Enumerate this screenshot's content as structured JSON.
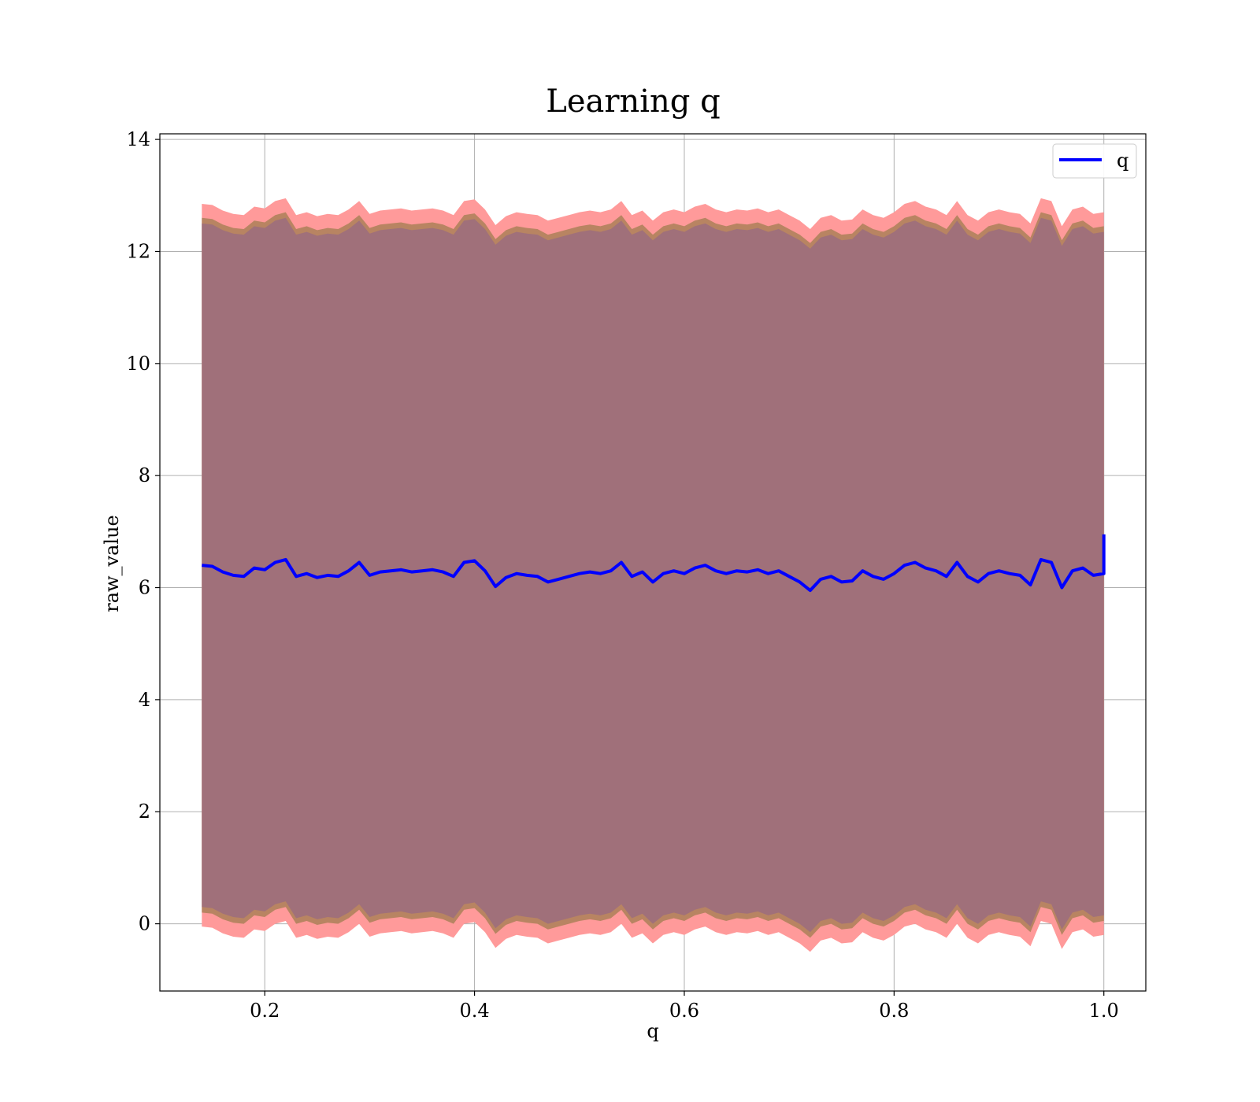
{
  "chart_data": {
    "type": "area",
    "title": "Learning q",
    "xlabel": "q",
    "ylabel": "raw_value",
    "xlim": [
      0.1,
      1.04
    ],
    "ylim": [
      -1.2,
      14.1
    ],
    "xticks": [
      0.2,
      0.4,
      0.6,
      0.8,
      1.0
    ],
    "xtick_labels": [
      "0.2",
      "0.4",
      "0.6",
      "0.8",
      "1.0"
    ],
    "yticks": [
      0,
      2,
      4,
      6,
      8,
      10,
      12,
      14
    ],
    "ytick_labels": [
      "0",
      "2",
      "4",
      "6",
      "8",
      "10",
      "12",
      "14"
    ],
    "grid": true,
    "legend": {
      "position": "top-right",
      "entries": [
        {
          "label": "q",
          "color": "#0000ff"
        }
      ]
    },
    "colors": {
      "line": "#0000ff",
      "band_outer": "#ff9a9a",
      "band_mid": "#b88462",
      "band_inner": "#a0707a",
      "axes": "#000000",
      "grid": "#b0b0b0"
    },
    "series": [
      {
        "name": "q",
        "x": [
          0.14,
          0.15,
          0.16,
          0.17,
          0.18,
          0.19,
          0.2,
          0.21,
          0.22,
          0.23,
          0.24,
          0.25,
          0.26,
          0.27,
          0.28,
          0.29,
          0.3,
          0.31,
          0.32,
          0.33,
          0.34,
          0.35,
          0.36,
          0.37,
          0.38,
          0.39,
          0.4,
          0.41,
          0.42,
          0.43,
          0.44,
          0.45,
          0.46,
          0.47,
          0.48,
          0.49,
          0.5,
          0.51,
          0.52,
          0.53,
          0.54,
          0.55,
          0.56,
          0.57,
          0.58,
          0.59,
          0.6,
          0.61,
          0.62,
          0.63,
          0.64,
          0.65,
          0.66,
          0.67,
          0.68,
          0.69,
          0.7,
          0.71,
          0.72,
          0.73,
          0.74,
          0.75,
          0.76,
          0.77,
          0.78,
          0.79,
          0.8,
          0.81,
          0.82,
          0.83,
          0.84,
          0.85,
          0.86,
          0.87,
          0.88,
          0.89,
          0.9,
          0.91,
          0.92,
          0.93,
          0.94,
          0.95,
          0.96,
          0.97,
          0.98,
          0.99,
          1.0
        ],
        "y": [
          6.4,
          6.38,
          6.28,
          6.22,
          6.2,
          6.35,
          6.32,
          6.45,
          6.5,
          6.2,
          6.25,
          6.18,
          6.22,
          6.2,
          6.3,
          6.45,
          6.22,
          6.28,
          6.3,
          6.32,
          6.28,
          6.3,
          6.32,
          6.28,
          6.2,
          6.45,
          6.48,
          6.3,
          6.02,
          6.18,
          6.25,
          6.22,
          6.2,
          6.1,
          6.15,
          6.2,
          6.25,
          6.28,
          6.25,
          6.3,
          6.45,
          6.2,
          6.28,
          6.1,
          6.25,
          6.3,
          6.25,
          6.35,
          6.4,
          6.3,
          6.25,
          6.3,
          6.28,
          6.32,
          6.25,
          6.3,
          6.2,
          6.1,
          5.95,
          6.15,
          6.2,
          6.1,
          6.12,
          6.3,
          6.2,
          6.15,
          6.25,
          6.4,
          6.45,
          6.35,
          6.3,
          6.2,
          6.45,
          6.2,
          6.1,
          6.25,
          6.3,
          6.25,
          6.22,
          6.05,
          6.5,
          6.45,
          6.0,
          6.3,
          6.35,
          6.22,
          6.25
        ],
        "end_spike": 6.95
      }
    ],
    "band_half_widths": {
      "inner": 6.1,
      "middle": 6.2,
      "outer": 6.45
    },
    "band_top_end_spike": 13.4
  }
}
